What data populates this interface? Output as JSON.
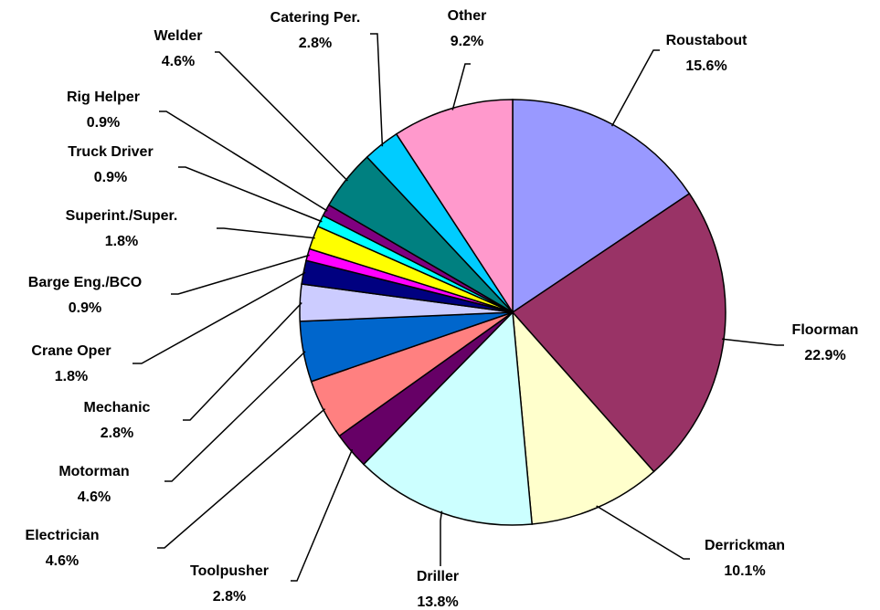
{
  "chart_data": {
    "type": "pie",
    "categories": [
      "Roustabout",
      "Floorman",
      "Derrickman",
      "Driller",
      "Toolpusher",
      "Electrician",
      "Motorman",
      "Mechanic",
      "Crane Oper",
      "Barge Eng./BCO",
      "Superint./Super.",
      "Truck Driver",
      "Rig Helper",
      "Welder",
      "Catering Per.",
      "Other"
    ],
    "values": [
      15.6,
      22.9,
      10.1,
      13.8,
      2.8,
      4.6,
      4.6,
      2.8,
      1.8,
      0.9,
      1.8,
      0.9,
      0.9,
      4.6,
      2.8,
      9.2
    ],
    "value_labels": [
      "15.6%",
      "22.9%",
      "10.1%",
      "13.8%",
      "2.8%",
      "4.6%",
      "4.6%",
      "2.8%",
      "1.8%",
      "0.9%",
      "1.8%",
      "0.9%",
      "0.9%",
      "4.6%",
      "2.8%",
      "9.2%"
    ],
    "colors": [
      "#9999ff",
      "#993366",
      "#ffffcc",
      "#ccffff",
      "#660066",
      "#ff8080",
      "#0066cc",
      "#ccccff",
      "#000080",
      "#ff00ff",
      "#ffff00",
      "#00ffff",
      "#800080",
      "#008080",
      "#00ccff",
      "#ff99cc"
    ]
  }
}
